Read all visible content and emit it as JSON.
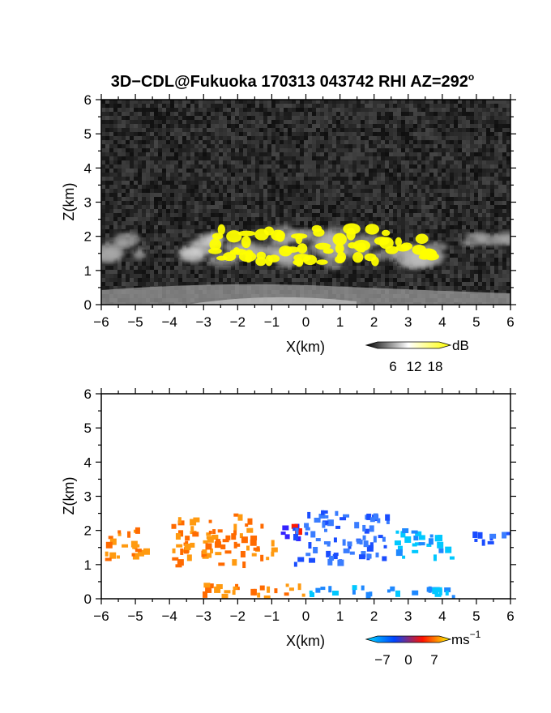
{
  "chart_data": [
    {
      "type": "heatmap",
      "title": "3D−CDL@Fukuoka 170313 043742 RHI AZ=292",
      "title_degree_mark": "o",
      "xlabel": "X(km)",
      "ylabel": "Z(km)",
      "xlim": [
        -6,
        6
      ],
      "ylim": [
        0,
        6
      ],
      "xticks": [
        "−6",
        "−5",
        "−4",
        "−3",
        "−2",
        "−1",
        "0",
        "1",
        "2",
        "3",
        "4",
        "5",
        "6"
      ],
      "yticks": [
        "0",
        "1",
        "2",
        "3",
        "4",
        "5",
        "6"
      ],
      "colorbar": {
        "unit": "dB",
        "ticks": [
          6,
          12,
          18
        ],
        "range": [
          0,
          20
        ],
        "colors": [
          "#000000",
          "#ffffff",
          "#ffff00"
        ]
      },
      "background": "#1e1e1e",
      "cloud_layers": [
        {
          "x": [
            -6,
            -4.6
          ],
          "z": [
            1.2,
            2.1
          ],
          "level": "weak"
        },
        {
          "x": [
            -3.6,
            -2.6
          ],
          "z": [
            1.1,
            2.2
          ],
          "level": "moderate"
        },
        {
          "x": [
            -2.9,
            4.0
          ],
          "z": [
            1.0,
            2.5
          ],
          "level": "strong"
        },
        {
          "x": [
            4.8,
            6
          ],
          "z": [
            1.6,
            2.1
          ],
          "level": "weak"
        }
      ]
    },
    {
      "type": "heatmap",
      "xlabel": "X(km)",
      "ylabel": "Z(km)",
      "xlim": [
        -6,
        6
      ],
      "ylim": [
        0,
        6
      ],
      "xticks": [
        "−6",
        "−5",
        "−4",
        "−3",
        "−2",
        "−1",
        "0",
        "1",
        "2",
        "3",
        "4",
        "5",
        "6"
      ],
      "yticks": [
        "0",
        "1",
        "2",
        "3",
        "4",
        "5",
        "6"
      ],
      "colorbar": {
        "unit": "ms",
        "unit_exponent": "−1",
        "ticks": [
          "−7",
          "0",
          "7"
        ],
        "range": [
          -9,
          9
        ],
        "colors": [
          "#00ddff",
          "#0044ff",
          "#ff1100",
          "#ffff00"
        ]
      },
      "background": "#ffffff",
      "wind_regions": [
        {
          "x": [
            -6,
            -4.5
          ],
          "z": [
            1.1,
            2.1
          ],
          "velocity": 5
        },
        {
          "x": [
            -4.0,
            -0.7
          ],
          "z": [
            0.9,
            2.5
          ],
          "velocity": 5
        },
        {
          "x": [
            -0.8,
            -0.1
          ],
          "z": [
            1.4,
            2.2
          ],
          "velocity": 0
        },
        {
          "x": [
            -0.4,
            2.5
          ],
          "z": [
            0.9,
            2.6
          ],
          "velocity": -6
        },
        {
          "x": [
            2.6,
            4.4
          ],
          "z": [
            1.1,
            2.1
          ],
          "velocity": -7
        },
        {
          "x": [
            4.8,
            6
          ],
          "z": [
            1.5,
            2.0
          ],
          "velocity": -6
        },
        {
          "x": [
            -3.2,
            0
          ],
          "z": [
            0,
            0.5
          ],
          "velocity": 4
        },
        {
          "x": [
            0,
            4.4
          ],
          "z": [
            0,
            0.4
          ],
          "velocity": -7
        }
      ]
    }
  ]
}
